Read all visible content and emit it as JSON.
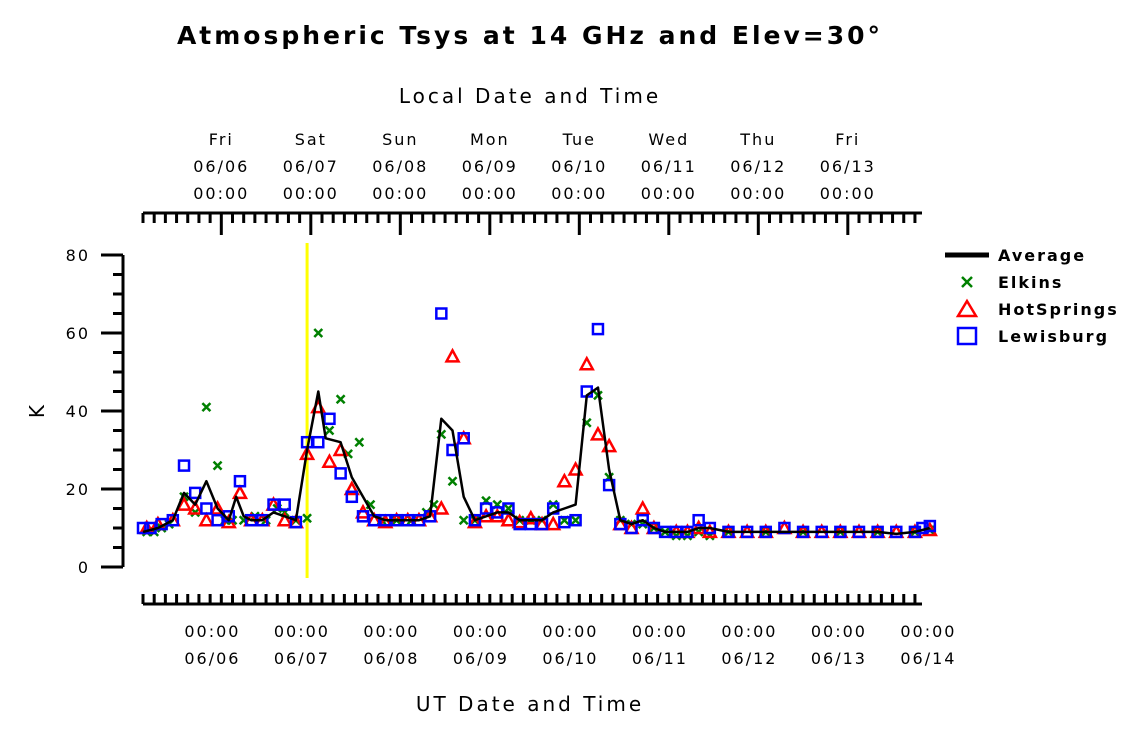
{
  "chart_data": {
    "type": "line",
    "title": "Atmospheric Tsys at 14 GHz and Elev=30°",
    "xlabel": "UT Date and Time",
    "x2label": "Local Date and Time",
    "ylabel": "K",
    "ylim": [
      0,
      80
    ],
    "yticks": [
      0,
      20,
      40,
      60,
      80
    ],
    "xlim_hours_note_removed": null,
    "x_range": [
      "06/05 07:00 UT",
      "06/14 00:00 UT"
    ],
    "ut_ticks": [
      {
        "time": "00:00",
        "date": "06/06"
      },
      {
        "time": "00:00",
        "date": "06/07"
      },
      {
        "time": "00:00",
        "date": "06/08"
      },
      {
        "time": "00:00",
        "date": "06/09"
      },
      {
        "time": "00:00",
        "date": "06/10"
      },
      {
        "time": "00:00",
        "date": "06/11"
      },
      {
        "time": "00:00",
        "date": "06/12"
      },
      {
        "time": "00:00",
        "date": "06/13"
      },
      {
        "time": "00:00",
        "date": "06/14"
      }
    ],
    "local_ticks": [
      {
        "day": "Fri",
        "date": "06/06",
        "time": "00:00"
      },
      {
        "day": "Sat",
        "date": "06/07",
        "time": "00:00"
      },
      {
        "day": "Sun",
        "date": "06/08",
        "time": "00:00"
      },
      {
        "day": "Mon",
        "date": "06/09",
        "time": "00:00"
      },
      {
        "day": "Tue",
        "date": "06/10",
        "time": "00:00"
      },
      {
        "day": "Wed",
        "date": "06/11",
        "time": "00:00"
      },
      {
        "day": "Thu",
        "date": "06/12",
        "time": "00:00"
      },
      {
        "day": "Fri",
        "date": "06/13",
        "time": "00:00"
      }
    ],
    "now_marker": "06/07 03:00 UT",
    "legend_position": "right",
    "series": [
      {
        "name": "Average",
        "style": "line",
        "color": "#000000",
        "points": [
          [
            -17,
            9
          ],
          [
            -15,
            9.5
          ],
          [
            -13,
            10
          ],
          [
            -11,
            11
          ],
          [
            -9,
            12
          ],
          [
            -6,
            19
          ],
          [
            -3,
            16
          ],
          [
            0,
            22
          ],
          [
            3,
            15
          ],
          [
            6,
            12
          ],
          [
            8,
            18
          ],
          [
            10,
            13
          ],
          [
            12,
            12
          ],
          [
            15,
            12
          ],
          [
            18,
            14
          ],
          [
            21,
            13
          ],
          [
            24,
            12
          ],
          [
            27,
            30
          ],
          [
            30,
            45
          ],
          [
            32,
            33
          ],
          [
            36,
            32
          ],
          [
            39,
            23
          ],
          [
            42,
            18
          ],
          [
            45,
            13
          ],
          [
            48,
            12
          ],
          [
            51,
            12
          ],
          [
            54,
            12
          ],
          [
            57,
            12
          ],
          [
            60,
            13
          ],
          [
            63,
            38
          ],
          [
            66,
            35
          ],
          [
            69,
            18
          ],
          [
            72,
            12
          ],
          [
            75,
            13
          ],
          [
            78,
            14
          ],
          [
            81,
            14
          ],
          [
            84,
            12
          ],
          [
            87,
            12
          ],
          [
            90,
            12
          ],
          [
            93,
            14
          ],
          [
            96,
            15
          ],
          [
            99,
            16
          ],
          [
            102,
            44
          ],
          [
            105,
            46
          ],
          [
            108,
            25
          ],
          [
            111,
            12
          ],
          [
            114,
            11
          ],
          [
            117,
            12
          ],
          [
            120,
            10
          ],
          [
            123,
            9
          ],
          [
            126,
            9
          ],
          [
            129,
            9
          ],
          [
            132,
            10
          ],
          [
            135,
            10
          ],
          [
            140,
            9
          ],
          [
            150,
            9
          ],
          [
            160,
            9
          ],
          [
            170,
            9
          ],
          [
            180,
            9
          ],
          [
            185,
            8.5
          ],
          [
            190,
            9
          ],
          [
            194,
            10
          ]
        ]
      },
      {
        "name": "Elkins",
        "style": "x",
        "color": "#008000",
        "points": [
          [
            -16,
            9
          ],
          [
            -14,
            9
          ],
          [
            -12,
            10
          ],
          [
            -10,
            11
          ],
          [
            -6,
            18
          ],
          [
            -3,
            14
          ],
          [
            0,
            41
          ],
          [
            3,
            26
          ],
          [
            5,
            12
          ],
          [
            7,
            12
          ],
          [
            10,
            12
          ],
          [
            13,
            13
          ],
          [
            16,
            12
          ],
          [
            19,
            15
          ],
          [
            21,
            14
          ],
          [
            24,
            12
          ],
          [
            27,
            12.5
          ],
          [
            30,
            60
          ],
          [
            33,
            35
          ],
          [
            36,
            43
          ],
          [
            38,
            29
          ],
          [
            41,
            32
          ],
          [
            44,
            16
          ],
          [
            47,
            12
          ],
          [
            51,
            12
          ],
          [
            55,
            12
          ],
          [
            59,
            14
          ],
          [
            61,
            16
          ],
          [
            63,
            34
          ],
          [
            66,
            22
          ],
          [
            69,
            12
          ],
          [
            72,
            12
          ],
          [
            75,
            17
          ],
          [
            78,
            16
          ],
          [
            81,
            15
          ],
          [
            84,
            12
          ],
          [
            87,
            12
          ],
          [
            90,
            12
          ],
          [
            93,
            16
          ],
          [
            96,
            12
          ],
          [
            99,
            12
          ],
          [
            102,
            37
          ],
          [
            105,
            44
          ],
          [
            108,
            23
          ],
          [
            111,
            12
          ],
          [
            114,
            11
          ],
          [
            117,
            11
          ],
          [
            120,
            10
          ],
          [
            123,
            9
          ],
          [
            126,
            8
          ],
          [
            129,
            8
          ],
          [
            132,
            9
          ],
          [
            135,
            8
          ],
          [
            140,
            9
          ],
          [
            150,
            9
          ],
          [
            160,
            9
          ],
          [
            170,
            9
          ],
          [
            180,
            9
          ],
          [
            190,
            9
          ],
          [
            194,
            9.5
          ]
        ]
      },
      {
        "name": "HotSprings",
        "style": "triangle",
        "color": "#ff0000",
        "points": [
          [
            -16,
            10
          ],
          [
            -13,
            11
          ],
          [
            -9,
            12
          ],
          [
            -6,
            16
          ],
          [
            -3,
            15
          ],
          [
            0,
            12
          ],
          [
            3,
            15
          ],
          [
            6,
            11.5
          ],
          [
            9,
            19
          ],
          [
            12,
            12
          ],
          [
            15,
            12
          ],
          [
            18,
            16
          ],
          [
            21,
            12
          ],
          [
            24,
            11.5
          ],
          [
            27,
            29
          ],
          [
            30,
            41
          ],
          [
            33,
            27
          ],
          [
            36,
            30
          ],
          [
            39,
            20
          ],
          [
            42,
            14
          ],
          [
            45,
            12
          ],
          [
            48,
            11.5
          ],
          [
            51,
            12
          ],
          [
            54,
            12
          ],
          [
            57,
            12
          ],
          [
            60,
            13
          ],
          [
            63,
            15
          ],
          [
            66,
            54
          ],
          [
            69,
            33
          ],
          [
            72,
            11.5
          ],
          [
            75,
            13
          ],
          [
            78,
            13
          ],
          [
            81,
            12
          ],
          [
            84,
            11.5
          ],
          [
            87,
            12.5
          ],
          [
            90,
            11
          ],
          [
            93,
            11
          ],
          [
            96,
            22
          ],
          [
            99,
            25
          ],
          [
            102,
            52
          ],
          [
            105,
            34
          ],
          [
            108,
            31
          ],
          [
            111,
            11
          ],
          [
            114,
            10
          ],
          [
            117,
            15
          ],
          [
            120,
            10
          ],
          [
            126,
            9
          ],
          [
            129,
            9
          ],
          [
            132,
            10
          ],
          [
            135,
            9
          ],
          [
            140,
            9
          ],
          [
            145,
            9
          ],
          [
            150,
            9
          ],
          [
            155,
            10
          ],
          [
            160,
            9
          ],
          [
            165,
            9
          ],
          [
            170,
            9
          ],
          [
            175,
            9
          ],
          [
            180,
            9
          ],
          [
            185,
            9
          ],
          [
            190,
            9
          ],
          [
            194,
            9.5
          ]
        ]
      },
      {
        "name": "Lewisburg",
        "style": "square",
        "color": "#0000ff",
        "points": [
          [
            -17,
            10
          ],
          [
            -15,
            10
          ],
          [
            -12,
            11
          ],
          [
            -9,
            12
          ],
          [
            -6,
            26
          ],
          [
            -3,
            19
          ],
          [
            0,
            15
          ],
          [
            3,
            12
          ],
          [
            6,
            13
          ],
          [
            9,
            22
          ],
          [
            12,
            12
          ],
          [
            15,
            12
          ],
          [
            18,
            16
          ],
          [
            21,
            16
          ],
          [
            24,
            11.5
          ],
          [
            27,
            32
          ],
          [
            30,
            32
          ],
          [
            33,
            38
          ],
          [
            36,
            24
          ],
          [
            39,
            18
          ],
          [
            42,
            13
          ],
          [
            45,
            12
          ],
          [
            48,
            12
          ],
          [
            51,
            12
          ],
          [
            54,
            12
          ],
          [
            57,
            12
          ],
          [
            60,
            13
          ],
          [
            63,
            65
          ],
          [
            66,
            30
          ],
          [
            69,
            33
          ],
          [
            72,
            12
          ],
          [
            75,
            15
          ],
          [
            78,
            14
          ],
          [
            81,
            15
          ],
          [
            84,
            11
          ],
          [
            87,
            11
          ],
          [
            90,
            11
          ],
          [
            93,
            15
          ],
          [
            96,
            11.5
          ],
          [
            99,
            12
          ],
          [
            102,
            45
          ],
          [
            105,
            61
          ],
          [
            108,
            21
          ],
          [
            111,
            11
          ],
          [
            114,
            10
          ],
          [
            117,
            12
          ],
          [
            120,
            10
          ],
          [
            123,
            9
          ],
          [
            126,
            9
          ],
          [
            129,
            9
          ],
          [
            132,
            12
          ],
          [
            135,
            10
          ],
          [
            140,
            9
          ],
          [
            145,
            9
          ],
          [
            150,
            9
          ],
          [
            155,
            10
          ],
          [
            160,
            9
          ],
          [
            165,
            9
          ],
          [
            170,
            9
          ],
          [
            175,
            9
          ],
          [
            180,
            9
          ],
          [
            185,
            9
          ],
          [
            190,
            9
          ],
          [
            192,
            10
          ],
          [
            194,
            10.5
          ]
        ]
      }
    ]
  }
}
